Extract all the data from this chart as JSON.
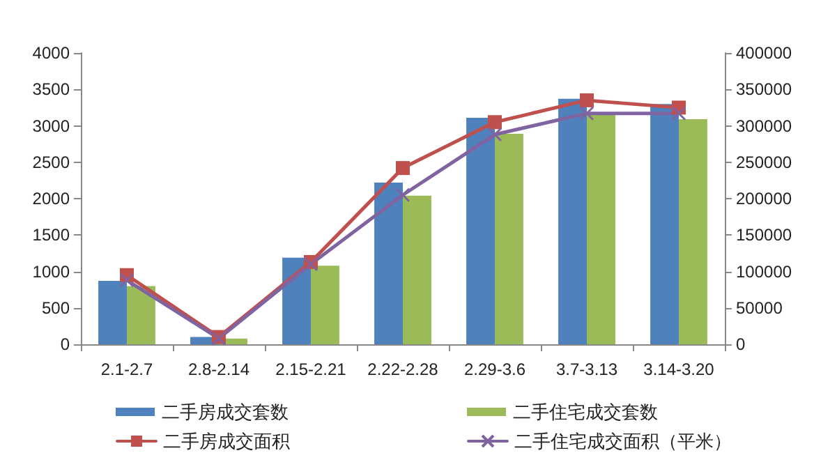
{
  "chart_data": {
    "type": "bar",
    "categories": [
      "2.1-2.7",
      "2.8-2.14",
      "2.15-2.21",
      "2.22-2.28",
      "2.29-3.6",
      "3.7-3.13",
      "3.14-3.20"
    ],
    "series": [
      {
        "name": "二手房成交套数",
        "color": "#4f81bd",
        "values": [
          870,
          100,
          1190,
          2220,
          3110,
          3370,
          3300
        ]
      },
      {
        "name": "二手住宅成交套数",
        "color": "#9bbb59",
        "values": [
          800,
          80,
          1080,
          2040,
          2890,
          3160,
          3090
        ]
      },
      {
        "name": "二手房成交面积",
        "type": "line",
        "axis": "y2",
        "marker": "square",
        "color": "#c0504d",
        "values": [
          95000,
          10000,
          113000,
          242000,
          305000,
          335000,
          325000
        ]
      },
      {
        "name": "二手住宅成交面积（平米）",
        "type": "line",
        "axis": "y2",
        "marker": "cross",
        "color": "#8064a2",
        "values": [
          88000,
          8000,
          110000,
          205000,
          288000,
          317000,
          317000
        ]
      }
    ],
    "ylim": [
      0,
      4000
    ],
    "yticks": [
      0,
      500,
      1000,
      1500,
      2000,
      2500,
      3000,
      3500,
      4000
    ],
    "y2lim": [
      0,
      400000
    ],
    "y2ticks": [
      0,
      50000,
      100000,
      150000,
      200000,
      250000,
      300000,
      350000,
      400000
    ],
    "grid": false,
    "legend": "bottom",
    "line_style": "solid"
  }
}
